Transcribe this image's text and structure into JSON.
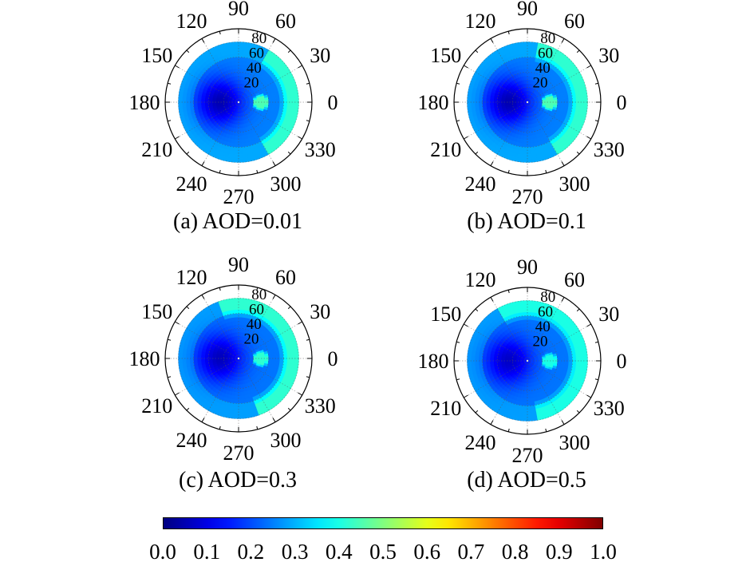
{
  "chart_data": [
    {
      "type": "heatmap",
      "subtype": "polar",
      "caption": "(a) AOD=0.01",
      "angular_ticks": [
        "0",
        "30",
        "60",
        "90",
        "120",
        "150",
        "180",
        "210",
        "240",
        "270",
        "300",
        "330"
      ],
      "radial_ticks": [
        "20",
        "40",
        "60",
        "80"
      ],
      "radial_range": [
        0,
        80
      ],
      "field": {
        "background": 0.25,
        "dark_center_azimuth": 180,
        "dark_center_radius": 25,
        "dark_value": 0.05,
        "bright_spot_azimuth": 0,
        "bright_spot_radius": 30,
        "bright_spot_value": 0.45,
        "edge_band_value": 0.42,
        "edge_band_azimuth_range": [
          -60,
          60
        ]
      }
    },
    {
      "type": "heatmap",
      "subtype": "polar",
      "caption": "(b) AOD=0.1",
      "angular_ticks": [
        "0",
        "30",
        "60",
        "90",
        "120",
        "150",
        "180",
        "210",
        "240",
        "270",
        "300",
        "330"
      ],
      "radial_ticks": [
        "20",
        "40",
        "60",
        "80"
      ],
      "radial_range": [
        0,
        80
      ],
      "field": {
        "background": 0.25,
        "dark_center_azimuth": 180,
        "dark_center_radius": 25,
        "dark_value": 0.05,
        "bright_spot_azimuth": 0,
        "bright_spot_radius": 30,
        "bright_spot_value": 0.45,
        "edge_band_value": 0.42,
        "edge_band_azimuth_range": [
          -60,
          80
        ]
      }
    },
    {
      "type": "heatmap",
      "subtype": "polar",
      "caption": "(c) AOD=0.3",
      "angular_ticks": [
        "0",
        "30",
        "60",
        "90",
        "120",
        "150",
        "180",
        "210",
        "240",
        "270",
        "300",
        "330"
      ],
      "radial_ticks": [
        "20",
        "40",
        "60",
        "80"
      ],
      "radial_range": [
        0,
        80
      ],
      "field": {
        "background": 0.24,
        "dark_center_azimuth": 180,
        "dark_center_radius": 25,
        "dark_value": 0.06,
        "bright_spot_azimuth": 0,
        "bright_spot_radius": 30,
        "bright_spot_value": 0.42,
        "edge_band_value": 0.42,
        "edge_band_azimuth_range": [
          -70,
          110
        ]
      }
    },
    {
      "type": "heatmap",
      "subtype": "polar",
      "caption": "(d) AOD=0.5",
      "angular_ticks": [
        "0",
        "30",
        "60",
        "90",
        "120",
        "150",
        "180",
        "210",
        "240",
        "270",
        "300",
        "330"
      ],
      "radial_ticks": [
        "20",
        "40",
        "60",
        "80"
      ],
      "radial_range": [
        0,
        80
      ],
      "field": {
        "background": 0.24,
        "dark_center_azimuth": 180,
        "dark_center_radius": 25,
        "dark_value": 0.07,
        "bright_spot_azimuth": 0,
        "bright_spot_radius": 30,
        "bright_spot_value": 0.4,
        "edge_band_value": 0.4,
        "edge_band_azimuth_range": [
          -80,
          120
        ]
      }
    }
  ],
  "colorbar": {
    "ticks": [
      "0.0",
      "0.1",
      "0.2",
      "0.3",
      "0.4",
      "0.5",
      "0.6",
      "0.7",
      "0.8",
      "0.9",
      "1.0"
    ],
    "range": [
      0,
      1
    ],
    "colormap": "jet"
  }
}
